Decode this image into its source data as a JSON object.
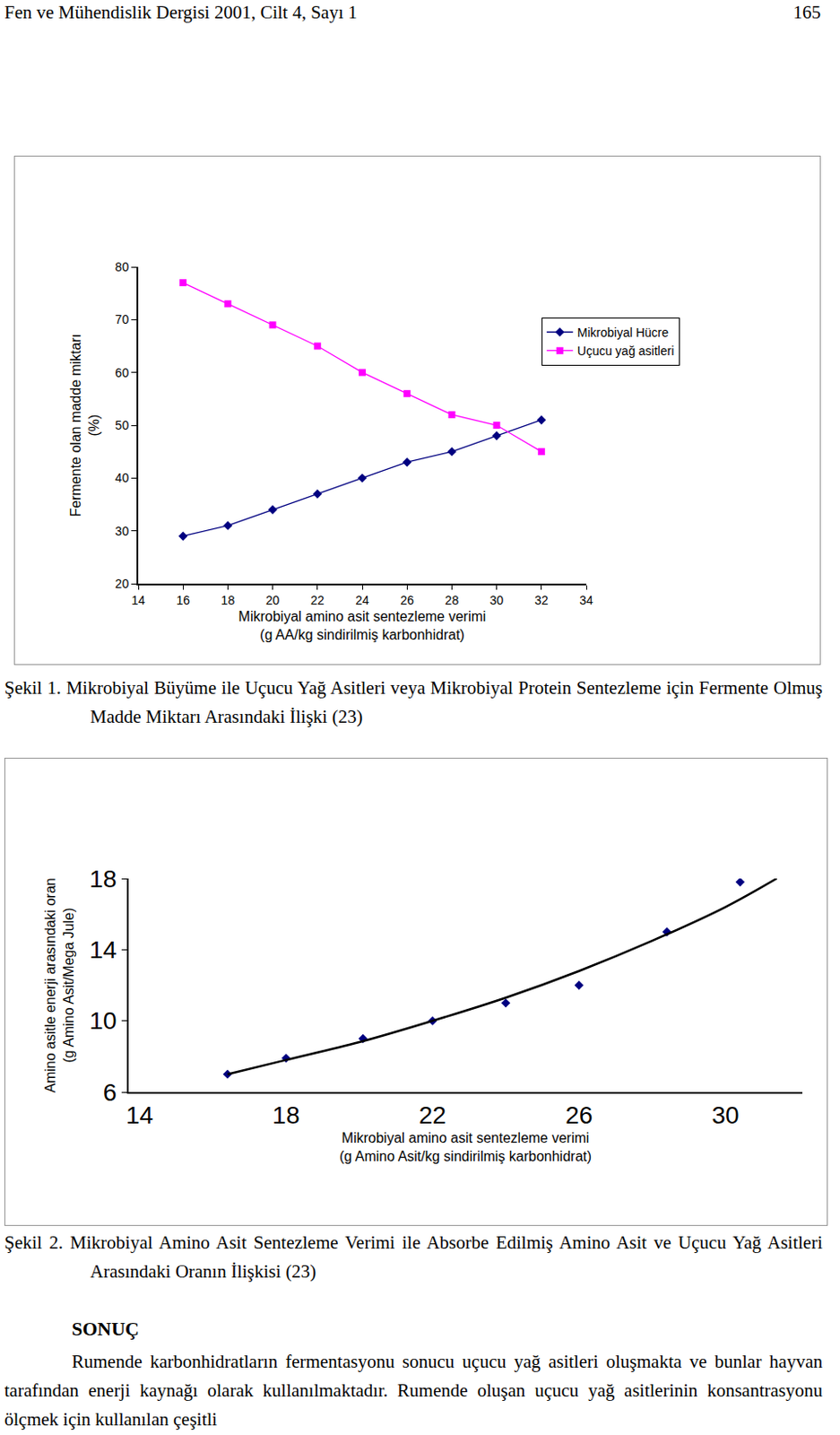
{
  "header": {
    "left": "Fen ve Mühendislik Dergisi 2001, Cilt 4, Sayı 1",
    "right": "165"
  },
  "chart_data": [
    {
      "type": "line",
      "x_label": [
        "Mikrobiyal amino asit sentezleme verimi",
        "(g AA/kg sindirilmiş karbonhidrat)"
      ],
      "y_label": [
        "Fermente olan madde miktarı",
        "(%)"
      ],
      "x": [
        16,
        18,
        20,
        22,
        24,
        26,
        28,
        30,
        32
      ],
      "series": [
        {
          "name": "Mikrobiyal Hücre",
          "color": "#000080",
          "marker": "diamond",
          "values": [
            29,
            31,
            34,
            37,
            40,
            43,
            45,
            48,
            51
          ]
        },
        {
          "name": "Uçucu yağ asitleri",
          "color": "#ff00ff",
          "marker": "square",
          "values": [
            77,
            73,
            69,
            65,
            60,
            56,
            52,
            50,
            45
          ]
        }
      ],
      "xlim": [
        14,
        34
      ],
      "xticks": [
        14,
        16,
        18,
        20,
        22,
        24,
        26,
        28,
        30,
        32,
        34
      ],
      "ylim": [
        20,
        80
      ],
      "yticks": [
        20,
        30,
        40,
        50,
        60,
        70,
        80
      ],
      "grid": false,
      "legend": "upper right"
    },
    {
      "type": "scatter",
      "x_label": [
        "Mikrobiyal amino asit sentezleme verimi",
        "(g Amino Asit/kg sindirilmiş karbonhidrat)"
      ],
      "y_label": [
        "Amino asitle enerji arasındaki oran",
        "(g Amino Asit/Mega Jule)"
      ],
      "series": [
        {
          "type": "scatter",
          "color": "#000080",
          "marker": "diamond",
          "x": [
            16.4,
            18,
            20.1,
            22,
            24,
            26,
            28.4,
            30.4
          ],
          "values": [
            7.0,
            7.9,
            9.0,
            10.0,
            11.0,
            12.0,
            15.0,
            17.8
          ]
        },
        {
          "type": "line",
          "color": "#000000",
          "line_style": "smooth",
          "x": [
            16.4,
            18,
            20,
            22,
            24,
            26,
            28,
            30,
            31.4
          ],
          "values": [
            7.0,
            7.8,
            8.8,
            10.0,
            11.3,
            12.8,
            14.5,
            16.4,
            18.0
          ]
        }
      ],
      "xlim": [
        13.7,
        32.1
      ],
      "xticks": [
        14,
        18,
        22,
        26,
        30
      ],
      "ylim": [
        6,
        18
      ],
      "yticks": [
        6,
        10,
        14,
        18
      ],
      "grid": false
    }
  ],
  "captions": [
    "Şekil 1. Mikrobiyal Büyüme ile Uçucu Yağ Asitleri veya Mikrobiyal Protein Sentezleme için Fermente Olmuş Madde Miktarı Arasındaki İlişki (23)",
    "Şekil 2. Mikrobiyal Amino Asit Sentezleme Verimi ile Absorbe Edilmiş Amino Asit ve Uçucu Yağ Asitleri Arasındaki Oranın İlişkisi (23)"
  ],
  "section": {
    "title": "SONUÇ",
    "text": "Rumende karbonhidratların fermentasyonu sonucu uçucu yağ asitleri oluşmakta ve bunlar hayvan tarafından enerji kaynağı olarak kullanılmaktadır. Rumende oluşan uçucu yağ asitlerinin konsantrasyonu ölçmek için kullanılan çeşitli"
  }
}
